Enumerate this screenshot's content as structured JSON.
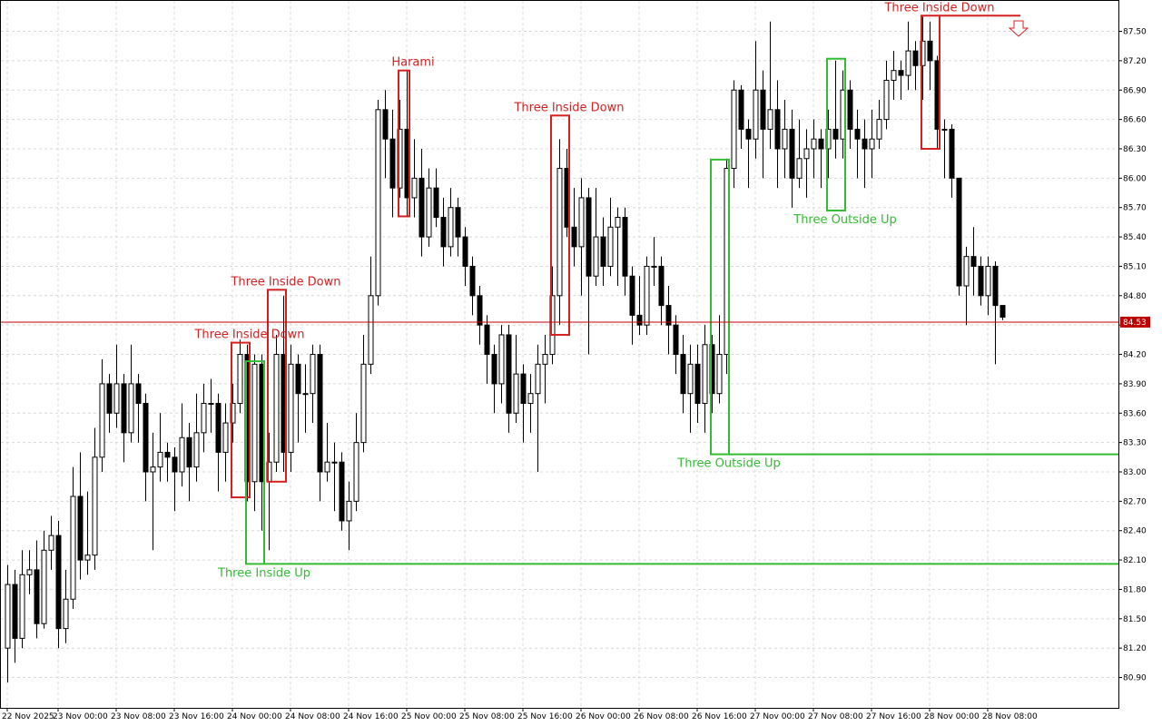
{
  "chart_data": {
    "type": "candlestick",
    "xlim": [
      -1,
      153
    ],
    "ylim": [
      80.59,
      87.82
    ],
    "grid": true,
    "bull_color": "#ffffff",
    "bear_color": "#000000",
    "current_price": 84.53,
    "current_price_color": "#c00000",
    "xticks": [
      {
        "value": 0,
        "label": "22 Nov 2025"
      },
      {
        "value": 7,
        "label": "23 Nov 00:00"
      },
      {
        "value": 15,
        "label": "23 Nov 08:00"
      },
      {
        "value": 23,
        "label": "23 Nov 16:00"
      },
      {
        "value": 31,
        "label": "24 Nov 00:00"
      },
      {
        "value": 39,
        "label": "24 Nov 08:00"
      },
      {
        "value": 47,
        "label": "24 Nov 16:00"
      },
      {
        "value": 55,
        "label": "25 Nov 00:00"
      },
      {
        "value": 63,
        "label": "25 Nov 08:00"
      },
      {
        "value": 71,
        "label": "25 Nov 16:00"
      },
      {
        "value": 79,
        "label": "26 Nov 00:00"
      },
      {
        "value": 87,
        "label": "26 Nov 08:00"
      },
      {
        "value": 95,
        "label": "26 Nov 16:00"
      },
      {
        "value": 103,
        "label": "27 Nov 00:00"
      },
      {
        "value": 111,
        "label": "27 Nov 08:00"
      },
      {
        "value": 119,
        "label": "27 Nov 16:00"
      },
      {
        "value": 127,
        "label": "28 Nov 00:00"
      },
      {
        "value": 135,
        "label": "28 Nov 08:00"
      }
    ],
    "yticks": [
      {
        "value": 87.5,
        "label": "87.50"
      },
      {
        "value": 87.2,
        "label": "87.20"
      },
      {
        "value": 86.9,
        "label": "86.90"
      },
      {
        "value": 86.6,
        "label": "86.60"
      },
      {
        "value": 86.3,
        "label": "86.30"
      },
      {
        "value": 86.0,
        "label": "86.00"
      },
      {
        "value": 85.7,
        "label": "85.70"
      },
      {
        "value": 85.4,
        "label": "85.40"
      },
      {
        "value": 85.1,
        "label": "85.10"
      },
      {
        "value": 84.8,
        "label": "84.80"
      },
      {
        "value": 84.5,
        "label": "84.50"
      },
      {
        "value": 84.2,
        "label": "84.20"
      },
      {
        "value": 83.9,
        "label": "83.90"
      },
      {
        "value": 83.6,
        "label": "83.60"
      },
      {
        "value": 83.3,
        "label": "83.30"
      },
      {
        "value": 83.0,
        "label": "83.00"
      },
      {
        "value": 82.7,
        "label": "82.70"
      },
      {
        "value": 82.4,
        "label": "82.40"
      },
      {
        "value": 82.1,
        "label": "82.10"
      },
      {
        "value": 81.8,
        "label": "81.80"
      },
      {
        "value": 81.5,
        "label": "81.50"
      },
      {
        "value": 81.2,
        "label": "81.20"
      },
      {
        "value": 80.9,
        "label": "80.90"
      }
    ],
    "candles": [
      [
        81.2,
        82.05,
        80.85,
        81.85
      ],
      [
        81.85,
        82.0,
        81.05,
        81.3
      ],
      [
        81.3,
        82.2,
        81.2,
        81.95
      ],
      [
        81.95,
        82.2,
        81.75,
        82.0
      ],
      [
        82.0,
        82.3,
        81.3,
        81.45
      ],
      [
        81.45,
        82.4,
        81.4,
        82.2
      ],
      [
        82.2,
        82.55,
        82.0,
        82.35
      ],
      [
        82.35,
        82.5,
        81.2,
        81.4
      ],
      [
        81.4,
        82.0,
        81.25,
        81.7
      ],
      [
        81.7,
        83.05,
        81.6,
        82.75
      ],
      [
        82.75,
        83.2,
        81.9,
        82.1
      ],
      [
        82.1,
        82.8,
        81.95,
        82.15
      ],
      [
        82.15,
        83.45,
        82.0,
        83.15
      ],
      [
        83.15,
        84.15,
        83.0,
        83.9
      ],
      [
        83.9,
        84.0,
        83.4,
        83.6
      ],
      [
        83.6,
        84.3,
        83.45,
        83.9
      ],
      [
        83.9,
        84.0,
        83.1,
        83.4
      ],
      [
        83.4,
        84.3,
        83.3,
        83.9
      ],
      [
        83.9,
        84.0,
        83.3,
        83.7
      ],
      [
        83.7,
        83.8,
        82.7,
        83.0
      ],
      [
        83.0,
        83.4,
        82.2,
        83.05
      ],
      [
        83.05,
        83.6,
        82.9,
        83.2
      ],
      [
        83.2,
        83.3,
        82.9,
        83.15
      ],
      [
        83.15,
        83.25,
        82.6,
        83.0
      ],
      [
        83.0,
        83.7,
        82.85,
        83.35
      ],
      [
        83.35,
        83.5,
        82.7,
        83.05
      ],
      [
        83.05,
        83.8,
        82.9,
        83.4
      ],
      [
        83.4,
        83.9,
        83.2,
        83.7
      ],
      [
        83.7,
        83.95,
        83.4,
        83.7
      ],
      [
        83.7,
        83.8,
        82.8,
        83.2
      ],
      [
        83.2,
        83.7,
        82.9,
        83.5
      ],
      [
        83.5,
        83.9,
        83.3,
        83.7
      ],
      [
        83.7,
        84.35,
        83.6,
        84.2
      ],
      [
        84.2,
        84.3,
        82.7,
        82.9
      ],
      [
        82.9,
        84.2,
        82.6,
        84.1
      ],
      [
        84.1,
        84.2,
        82.4,
        82.9
      ],
      [
        82.9,
        83.4,
        82.2,
        83.1
      ],
      [
        83.1,
        84.4,
        83.0,
        84.2
      ],
      [
        84.2,
        84.8,
        83.0,
        83.2
      ],
      [
        83.2,
        84.3,
        83.0,
        84.1
      ],
      [
        84.1,
        84.2,
        83.3,
        83.8
      ],
      [
        83.8,
        84.1,
        83.4,
        83.8
      ],
      [
        83.8,
        84.3,
        83.5,
        84.2
      ],
      [
        84.2,
        84.3,
        82.7,
        83.0
      ],
      [
        83.0,
        83.5,
        82.9,
        83.1
      ],
      [
        83.1,
        83.3,
        82.6,
        83.1
      ],
      [
        83.1,
        83.2,
        82.4,
        82.5
      ],
      [
        82.5,
        82.9,
        82.2,
        82.7
      ],
      [
        82.7,
        83.6,
        82.6,
        83.3
      ],
      [
        83.3,
        84.4,
        83.2,
        84.1
      ],
      [
        84.1,
        85.2,
        84.0,
        84.8
      ],
      [
        84.8,
        86.8,
        84.7,
        86.7
      ],
      [
        86.7,
        86.9,
        86.0,
        86.4
      ],
      [
        86.4,
        86.7,
        85.6,
        85.9
      ],
      [
        85.9,
        86.8,
        85.8,
        86.5
      ],
      [
        86.5,
        87.1,
        85.6,
        85.8
      ],
      [
        85.8,
        86.4,
        85.6,
        86.0
      ],
      [
        86.0,
        86.3,
        85.2,
        85.4
      ],
      [
        85.4,
        86.1,
        85.3,
        85.9
      ],
      [
        85.9,
        86.1,
        85.5,
        85.6
      ],
      [
        85.6,
        85.8,
        85.1,
        85.3
      ],
      [
        85.3,
        85.9,
        85.2,
        85.7
      ],
      [
        85.7,
        85.8,
        85.2,
        85.4
      ],
      [
        85.4,
        85.5,
        84.9,
        85.1
      ],
      [
        85.1,
        85.2,
        84.6,
        84.8
      ],
      [
        84.8,
        84.9,
        84.3,
        84.5
      ],
      [
        84.5,
        84.6,
        83.9,
        84.2
      ],
      [
        84.2,
        84.3,
        83.6,
        83.9
      ],
      [
        83.9,
        84.5,
        83.7,
        84.4
      ],
      [
        84.4,
        84.5,
        83.4,
        83.6
      ],
      [
        83.6,
        84.4,
        83.5,
        84.0
      ],
      [
        84.0,
        84.1,
        83.3,
        83.7
      ],
      [
        83.7,
        84.0,
        83.4,
        83.8
      ],
      [
        83.8,
        84.3,
        83.0,
        84.1
      ],
      [
        84.1,
        84.4,
        83.7,
        84.2
      ],
      [
        84.2,
        85.1,
        84.1,
        84.8
      ],
      [
        84.8,
        86.4,
        84.5,
        86.1
      ],
      [
        86.1,
        86.3,
        85.4,
        85.5
      ],
      [
        85.5,
        85.9,
        85.1,
        85.3
      ],
      [
        85.3,
        86.0,
        84.8,
        85.8
      ],
      [
        85.8,
        85.9,
        84.2,
        85.0
      ],
      [
        85.0,
        85.9,
        84.9,
        85.4
      ],
      [
        85.4,
        85.6,
        84.9,
        85.1
      ],
      [
        85.1,
        85.8,
        85.0,
        85.5
      ],
      [
        85.5,
        85.7,
        84.9,
        85.6
      ],
      [
        85.6,
        85.7,
        84.8,
        85.0
      ],
      [
        85.0,
        85.1,
        84.3,
        84.6
      ],
      [
        84.6,
        85.0,
        84.4,
        84.5
      ],
      [
        84.5,
        85.2,
        84.4,
        85.1
      ],
      [
        85.1,
        85.4,
        84.9,
        85.1
      ],
      [
        85.1,
        85.2,
        84.5,
        84.7
      ],
      [
        84.7,
        84.9,
        84.2,
        84.5
      ],
      [
        84.5,
        84.6,
        84.0,
        84.2
      ],
      [
        84.2,
        84.4,
        83.6,
        83.8
      ],
      [
        83.8,
        84.3,
        83.4,
        84.1
      ],
      [
        84.1,
        84.3,
        83.5,
        83.7
      ],
      [
        83.7,
        84.5,
        83.4,
        84.3
      ],
      [
        84.3,
        84.4,
        83.6,
        83.8
      ],
      [
        83.8,
        84.6,
        83.7,
        84.2
      ],
      [
        84.2,
        86.2,
        84.0,
        86.1
      ],
      [
        86.1,
        87.0,
        85.9,
        86.9
      ],
      [
        86.9,
        86.95,
        86.3,
        86.5
      ],
      [
        86.5,
        86.6,
        85.9,
        86.4
      ],
      [
        86.4,
        87.4,
        86.2,
        86.9
      ],
      [
        86.9,
        87.1,
        86.0,
        86.5
      ],
      [
        86.5,
        87.6,
        86.3,
        86.7
      ],
      [
        86.7,
        87.0,
        85.9,
        86.3
      ],
      [
        86.3,
        86.8,
        86.0,
        86.5
      ],
      [
        86.5,
        86.7,
        85.7,
        86.0
      ],
      [
        86.0,
        86.6,
        85.9,
        86.2
      ],
      [
        86.2,
        86.5,
        85.8,
        86.3
      ],
      [
        86.3,
        86.6,
        86.0,
        86.4
      ],
      [
        86.4,
        86.5,
        85.9,
        86.3
      ],
      [
        86.3,
        86.7,
        86.0,
        86.5
      ],
      [
        86.5,
        87.2,
        86.2,
        86.4
      ],
      [
        86.4,
        87.1,
        86.2,
        86.9
      ],
      [
        86.9,
        87.0,
        86.3,
        86.5
      ],
      [
        86.5,
        86.7,
        86.0,
        86.4
      ],
      [
        86.4,
        86.6,
        85.9,
        86.3
      ],
      [
        86.3,
        86.7,
        86.0,
        86.4
      ],
      [
        86.4,
        86.8,
        86.3,
        86.6
      ],
      [
        86.6,
        87.2,
        86.5,
        87.0
      ],
      [
        87.0,
        87.3,
        86.8,
        87.1
      ],
      [
        87.1,
        87.2,
        86.8,
        87.05
      ],
      [
        87.05,
        87.6,
        86.9,
        87.3
      ],
      [
        87.3,
        87.4,
        86.9,
        87.15
      ],
      [
        87.15,
        87.65,
        86.8,
        87.4
      ],
      [
        87.4,
        87.6,
        86.9,
        87.2
      ],
      [
        87.2,
        87.25,
        86.3,
        86.5
      ],
      [
        86.5,
        86.6,
        86.0,
        86.5
      ],
      [
        86.5,
        86.55,
        85.8,
        86.0
      ],
      [
        86.0,
        86.0,
        84.8,
        84.9
      ],
      [
        84.9,
        85.3,
        84.5,
        85.2
      ],
      [
        85.2,
        85.5,
        84.8,
        85.1
      ],
      [
        85.1,
        85.2,
        84.7,
        84.8
      ],
      [
        84.8,
        85.2,
        84.6,
        85.1
      ],
      [
        85.1,
        85.15,
        84.1,
        84.7
      ],
      [
        84.7,
        84.7,
        84.55,
        84.58
      ]
    ],
    "patterns": [
      {
        "label": "Three Inside Down",
        "start": 31,
        "end": 33,
        "high": 84.32,
        "low": 82.74,
        "color": "#d62020"
      },
      {
        "label": "Three Inside Up",
        "start": 33,
        "end": 35,
        "high": 84.13,
        "low": 82.06,
        "color": "#33bb33",
        "level": 82.06
      },
      {
        "label": "Three Inside Down",
        "start": 36,
        "end": 38,
        "high": 84.86,
        "low": 82.9,
        "color": "#d62020"
      },
      {
        "label": "Harami",
        "start": 54,
        "end": 55,
        "high": 87.1,
        "low": 85.61,
        "color": "#d62020"
      },
      {
        "label": "Three Inside Down",
        "start": 75,
        "end": 77,
        "high": 86.64,
        "low": 84.4,
        "color": "#d62020"
      },
      {
        "label": "Three Outside Up",
        "start": 97,
        "end": 99,
        "high": 86.19,
        "low": 83.18,
        "color": "#33bb33",
        "level": 83.18
      },
      {
        "label": "Three Outside Up",
        "start": 113,
        "end": 115,
        "high": 87.22,
        "low": 85.67,
        "color": "#33bb33"
      },
      {
        "label": "Three Inside Down",
        "start": 126,
        "end": 128,
        "high": 87.66,
        "low": 86.3,
        "color": "#d62020",
        "level": 87.66
      }
    ]
  }
}
